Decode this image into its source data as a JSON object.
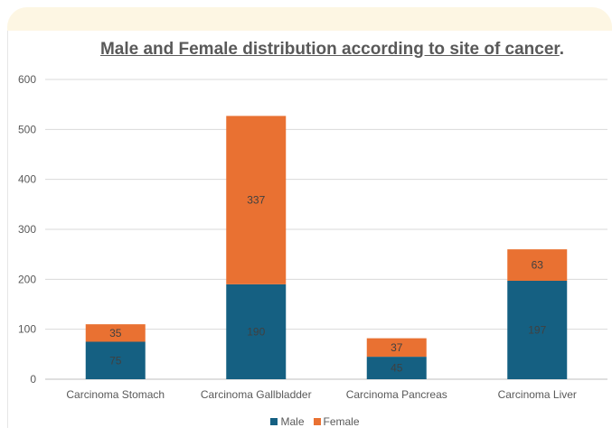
{
  "chart_data": {
    "type": "bar",
    "stacked": true,
    "title": "Male and Female distribution according to site of cancer",
    "title_suffix": ".",
    "categories": [
      "Carcinoma Stomach",
      "Carcinoma Gallbladder",
      "Carcinoma Pancreas",
      "Carcinoma Liver"
    ],
    "series": [
      {
        "name": "Male",
        "values": [
          75,
          190,
          45,
          197
        ],
        "color": "#156082"
      },
      {
        "name": "Female",
        "values": [
          35,
          337,
          37,
          63
        ],
        "color": "#e97132"
      }
    ],
    "ylim": [
      0,
      600
    ],
    "yticks": [
      0,
      100,
      200,
      300,
      400,
      500,
      600
    ],
    "grid": true,
    "legend_position": "bottom"
  }
}
